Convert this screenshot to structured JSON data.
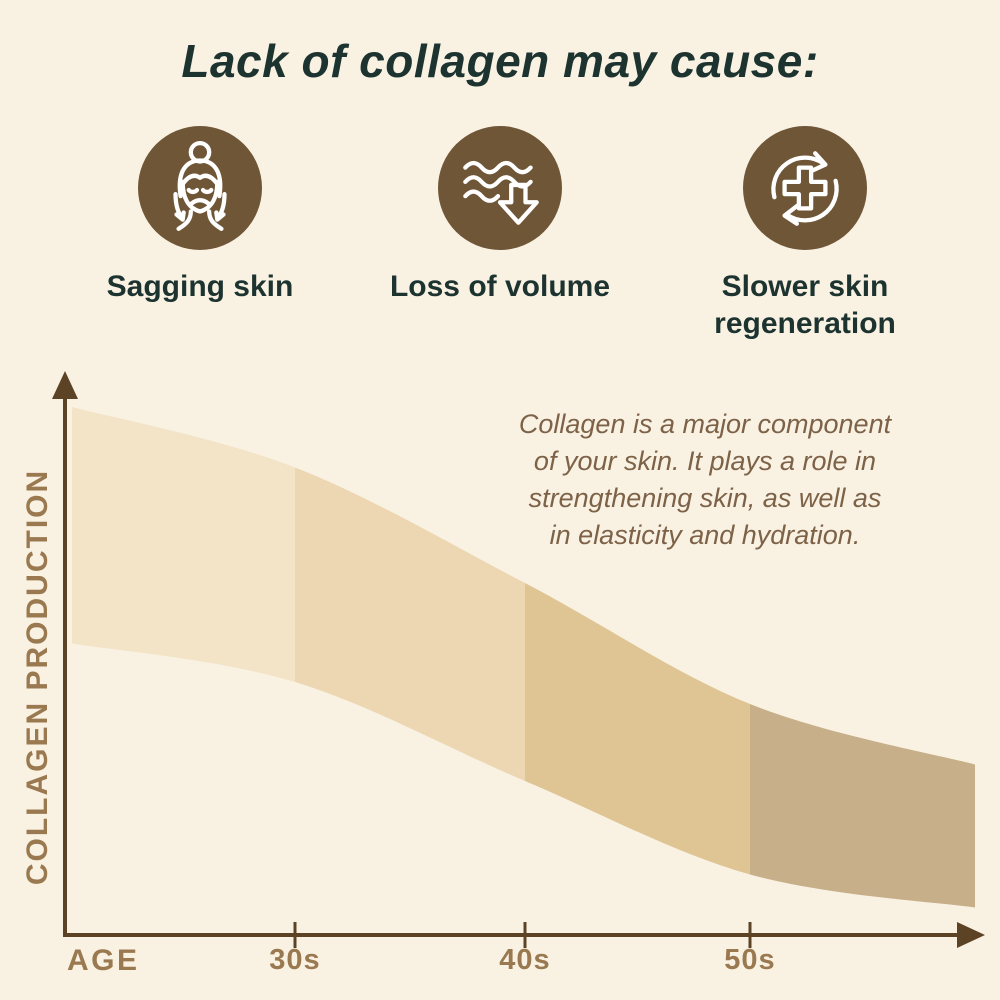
{
  "title": "Lack of collagen may cause:",
  "causes": [
    {
      "label": "Sagging skin",
      "icon": "sagging-skin-icon"
    },
    {
      "label": "Loss of volume",
      "icon": "loss-of-volume-icon"
    },
    {
      "label": "Slower skin regeneration",
      "icon": "skin-regeneration-icon"
    }
  ],
  "note": {
    "lines": [
      "Collagen is a major component",
      "of your skin. It plays a role in",
      "strengthening skin, as well as",
      "in elasticity and hydration."
    ]
  },
  "chart": {
    "y_axis_label": "COLLAGEN PRODUCTION",
    "x_axis_label": "AGE",
    "ticks": [
      "30s",
      "40s",
      "50s"
    ]
  },
  "colors": {
    "background": "#f9f2e3",
    "title_text": "#1d3330",
    "icon_circle": "#6f5637",
    "icon_stroke": "#ffffff",
    "note_text": "#7d6248",
    "axis": "#5d4326",
    "axis_label": "#9a7950",
    "band_segments": [
      "#f3e3c7",
      "#ecd7b2",
      "#dfc494",
      "#c7b089"
    ]
  },
  "chart_data": {
    "type": "area",
    "xlabel": "AGE",
    "ylabel": "COLLAGEN PRODUCTION",
    "x": [
      "start",
      "30s",
      "40s",
      "50s",
      "end"
    ],
    "x_tick_labels": [
      "30s",
      "40s",
      "50s"
    ],
    "series": [
      {
        "name": "band upper edge (relative collagen production, %)",
        "values": [
          96,
          85,
          64,
          42,
          31
        ]
      },
      {
        "name": "band lower edge (relative collagen production, %)",
        "values": [
          53,
          46,
          28,
          11,
          5
        ]
      }
    ],
    "ylim": [
      0,
      100
    ],
    "grid": false,
    "legend": false,
    "annotation": "Collagen is a major component of your skin. It plays a role in strengthening skin, as well as in elasticity and hydration."
  }
}
